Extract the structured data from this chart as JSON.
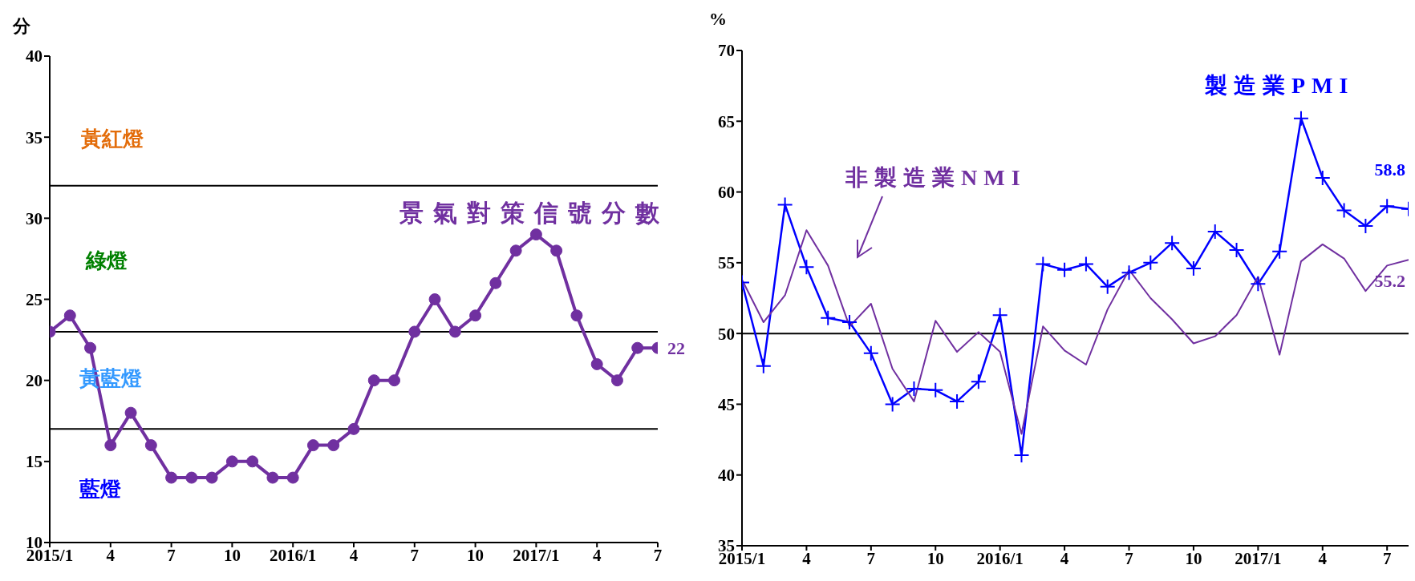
{
  "chart_data": [
    {
      "type": "line",
      "ylabel": "分",
      "categories": [
        "2015/1",
        null,
        null,
        "4",
        null,
        null,
        "7",
        null,
        null,
        "10",
        null,
        null,
        "2016/1",
        null,
        null,
        "4",
        null,
        null,
        "7",
        null,
        null,
        "10",
        null,
        null,
        "2017/1",
        null,
        null,
        "4",
        null,
        null,
        "7"
      ],
      "series": [
        {
          "name": "景氣對策信號分數",
          "color": "#7030a0",
          "marker": "circle",
          "values": [
            23,
            24,
            22,
            16,
            18,
            16,
            14,
            14,
            14,
            15,
            15,
            14,
            14,
            16,
            16,
            17,
            20,
            20,
            23,
            25,
            23,
            24,
            26,
            28,
            29,
            28,
            24,
            21,
            20,
            22,
            22
          ],
          "value_labels": [
            null,
            null,
            null,
            null,
            null,
            null,
            null,
            null,
            null,
            null,
            null,
            null,
            null,
            null,
            null,
            null,
            null,
            null,
            null,
            null,
            null,
            null,
            null,
            null,
            null,
            null,
            null,
            null,
            null,
            null,
            "22"
          ]
        }
      ],
      "ylim": [
        10,
        40
      ],
      "yticks": [
        10,
        15,
        20,
        25,
        30,
        35,
        40
      ],
      "annotations": [
        "黃紅燈",
        "綠燈",
        "黃藍燈",
        "藍燈"
      ],
      "ref_lines": [
        {
          "axis": "y",
          "value": 32,
          "color": "#000000"
        },
        {
          "axis": "y",
          "value": 23,
          "color": "#000000"
        },
        {
          "axis": "y",
          "value": 17,
          "color": "#000000"
        }
      ]
    },
    {
      "type": "line",
      "ylabel": "%",
      "categories": [
        "2015/1",
        null,
        null,
        "4",
        null,
        null,
        "7",
        null,
        null,
        "10",
        null,
        null,
        "2016/1",
        null,
        null,
        "4",
        null,
        null,
        "7",
        null,
        null,
        "10",
        null,
        null,
        "2017/1",
        null,
        null,
        "4",
        null,
        null,
        "7",
        null
      ],
      "series": [
        {
          "name": "製造業PMI",
          "color": "#0000ff",
          "marker": "cross",
          "values": [
            53.6,
            47.7,
            59.1,
            54.7,
            51.1,
            50.8,
            48.6,
            45.0,
            46.1,
            46.0,
            45.2,
            46.6,
            51.3,
            41.4,
            54.9,
            54.5,
            54.9,
            53.3,
            54.3,
            55.0,
            56.4,
            54.6,
            57.2,
            55.9,
            53.5,
            55.8,
            65.2,
            61.0,
            58.7,
            57.6,
            59.0,
            58.8
          ],
          "value_labels": [
            null,
            null,
            null,
            null,
            null,
            null,
            null,
            null,
            null,
            null,
            null,
            null,
            null,
            null,
            null,
            null,
            null,
            null,
            null,
            null,
            null,
            null,
            null,
            null,
            null,
            null,
            null,
            null,
            null,
            null,
            null,
            "58.8"
          ]
        },
        {
          "name": "非製造業NMI",
          "color": "#7030a0",
          "marker": "none",
          "values": [
            53.8,
            50.8,
            52.7,
            57.3,
            54.8,
            50.5,
            52.1,
            47.5,
            45.2,
            50.9,
            48.7,
            50.1,
            48.7,
            42.9,
            50.5,
            48.8,
            47.8,
            51.7,
            54.5,
            52.5,
            51.0,
            49.3,
            49.8,
            51.3,
            54.0,
            48.5,
            55.1,
            56.3,
            55.3,
            53.0,
            54.8,
            55.2
          ],
          "value_labels": [
            null,
            null,
            null,
            null,
            null,
            null,
            null,
            null,
            null,
            null,
            null,
            null,
            null,
            null,
            null,
            null,
            null,
            null,
            null,
            null,
            null,
            null,
            null,
            null,
            null,
            null,
            null,
            null,
            null,
            null,
            null,
            "55.2"
          ]
        }
      ],
      "ylim": [
        35,
        70
      ],
      "yticks": [
        35,
        40,
        45,
        50,
        55,
        60,
        65,
        70
      ],
      "ref_lines": [
        {
          "axis": "y",
          "value": 50,
          "color": "#000000"
        }
      ]
    }
  ]
}
